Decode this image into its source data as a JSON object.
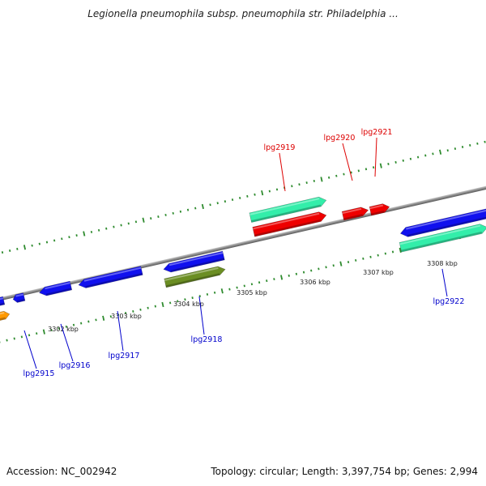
{
  "title": "Legionella pneumophila subsp. pneumophila str. Philadelphia ...",
  "footer": {
    "accession": "Accession: NC_002942",
    "summary": "Topology: circular; Length: 3,397,754 bp; Genes: 2,994"
  },
  "colors": {
    "backbone": "#808080",
    "tick": "#2e8b2e",
    "label_top": "#dd0000",
    "label_bottom": "#0000cc",
    "gene_blue": "#1010ee",
    "gene_red": "#ee0000",
    "gene_teal": "#33eeaa",
    "gene_olive": "#6b8e23",
    "gene_orange": "#ff9900"
  },
  "scale_labels": [
    "3302 kbp",
    "3303 kbp",
    "3304 kbp",
    "3305 kbp",
    "3306 kbp",
    "3307 kbp",
    "3308 kbp"
  ],
  "gene_labels_top": [
    "lpg2919",
    "lpg2920",
    "lpg2921"
  ],
  "gene_labels_bottom": [
    "lpg2915",
    "lpg2916",
    "lpg2917",
    "lpg2918",
    "lpg2922"
  ]
}
